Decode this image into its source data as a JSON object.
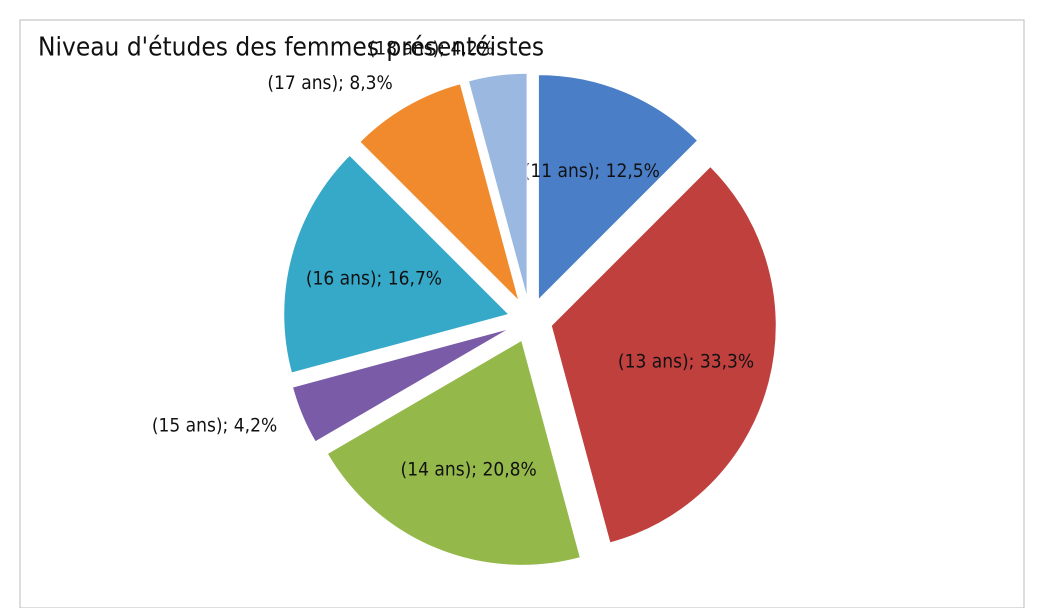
{
  "chart_data": {
    "type": "pie",
    "title": "Niveau d'études des femmes présentéistes",
    "categories": [
      "(11 ans);",
      "(13 ans);",
      "(14 ans);",
      "(15 ans);",
      "(16 ans);",
      "(17 ans);",
      "(18 ans);"
    ],
    "values": [
      12.5,
      33.3,
      20.8,
      4.2,
      16.7,
      8.3,
      4.2
    ],
    "value_labels": [
      "12,5%",
      "33,3%",
      "20,8%",
      "4,2%",
      "16,7%",
      "8,3%",
      "4,2%"
    ],
    "colors": [
      "#4a7fc8",
      "#c0403e",
      "#94b94a",
      "#7a5ba8",
      "#36a9c9",
      "#f08a2c",
      "#9ab8e0"
    ]
  }
}
